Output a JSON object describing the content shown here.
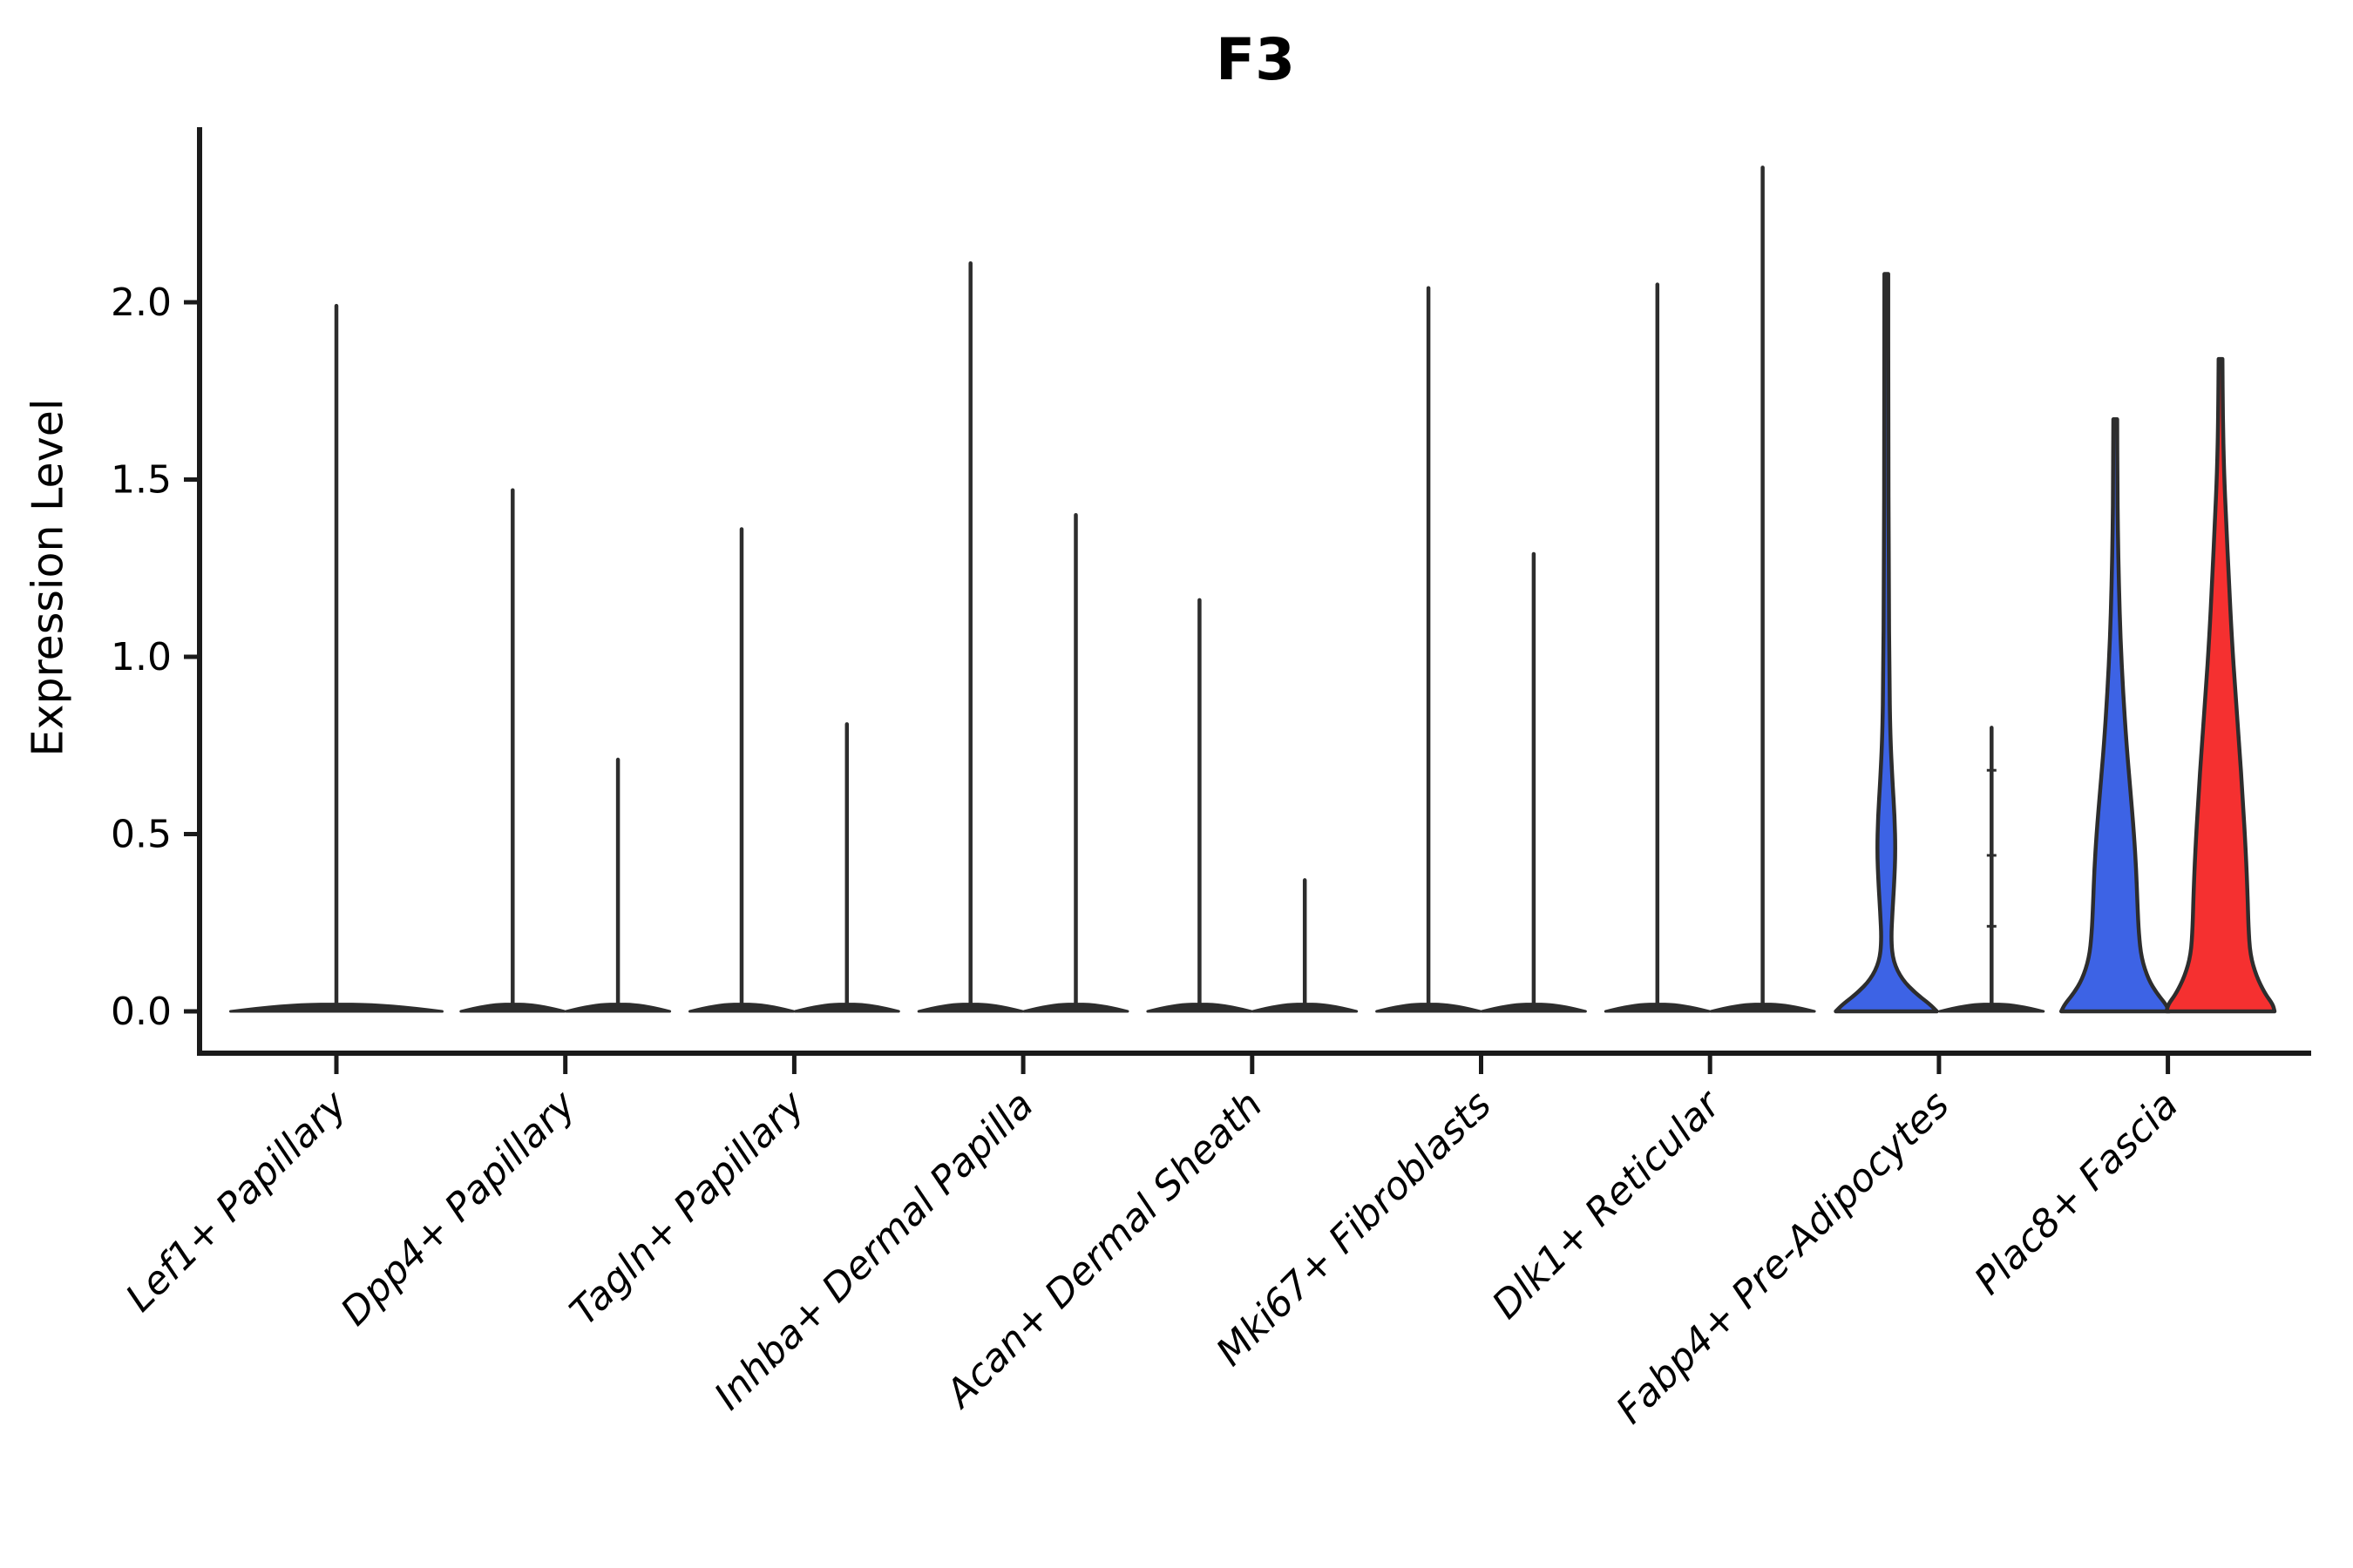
{
  "title": "F3",
  "chart_data": {
    "type": "violin",
    "title": "F3",
    "ylabel": "Expression Level",
    "xlabel": "",
    "ylim": [
      -0.12,
      2.49
    ],
    "y_ticks": [
      0.0,
      0.5,
      1.0,
      1.5,
      2.0
    ],
    "y_tick_labels": [
      "0.0",
      "0.5",
      "1.0",
      "1.5",
      "2.0"
    ],
    "grid": false,
    "legend": "none",
    "categories": [
      "Lef1+ Papillary",
      "Dpp4+ Papillary",
      "Tagln+ Papillary",
      "Inhba+ Dermal Papilla",
      "Acan+ Dermal Sheath",
      "Mki67+ Fibroblasts",
      "Dlk1+ Reticular",
      "Fabp4+ Pre-Adipocytes",
      "Plac8+ Fascia"
    ],
    "series": [
      {
        "name": "left-violin",
        "fill_color": "#3D63E5",
        "max_expression": [
          1.99,
          1.47,
          1.36,
          2.11,
          1.16,
          2.04,
          2.05,
          2.08,
          1.67
        ]
      },
      {
        "name": "right-violin",
        "fill_color": "#F53030",
        "max_expression": [
          null,
          0.71,
          0.81,
          1.4,
          0.37,
          1.29,
          2.38,
          0.8,
          1.84
        ]
      }
    ],
    "colors": {
      "violin_outline": "#2D2D2D",
      "axis": "#1A1A1A",
      "blue_fill": "#3D63E5",
      "red_fill": "#F53030",
      "background": "#FFFFFF"
    },
    "violins": [
      {
        "category": 0,
        "side": "center",
        "style": "spike",
        "max": 1.99
      },
      {
        "category": 1,
        "side": "left",
        "style": "spike",
        "max": 1.47
      },
      {
        "category": 1,
        "side": "right",
        "style": "spike",
        "max": 0.71
      },
      {
        "category": 2,
        "side": "left",
        "style": "spike",
        "max": 1.36
      },
      {
        "category": 2,
        "side": "right",
        "style": "spike",
        "max": 0.81
      },
      {
        "category": 3,
        "side": "left",
        "style": "spike",
        "max": 2.11
      },
      {
        "category": 3,
        "side": "right",
        "style": "spike",
        "max": 1.4
      },
      {
        "category": 4,
        "side": "left",
        "style": "spike",
        "max": 1.16
      },
      {
        "category": 4,
        "side": "right",
        "style": "spike",
        "max": 0.37
      },
      {
        "category": 5,
        "side": "left",
        "style": "spike",
        "max": 2.04
      },
      {
        "category": 5,
        "side": "right",
        "style": "spike",
        "max": 1.29
      },
      {
        "category": 6,
        "side": "left",
        "style": "spike",
        "max": 2.05
      },
      {
        "category": 6,
        "side": "right",
        "style": "spike",
        "max": 2.38
      },
      {
        "category": 7,
        "side": "left",
        "style": "shaped",
        "max": 2.08,
        "fill": "#3D63E5",
        "profile": [
          [
            2.08,
            2.2
          ],
          [
            1.7,
            2.2
          ],
          [
            1.2,
            2.8
          ],
          [
            0.95,
            3.5
          ],
          [
            0.78,
            4.5
          ],
          [
            0.65,
            7.0
          ],
          [
            0.55,
            9.5
          ],
          [
            0.45,
            10.5
          ],
          [
            0.36,
            9.0
          ],
          [
            0.28,
            7.0
          ],
          [
            0.2,
            5.5
          ],
          [
            0.14,
            8.0
          ],
          [
            0.09,
            18.0
          ],
          [
            0.05,
            34.0
          ],
          [
            0.02,
            50.0
          ],
          [
            0.0,
            58.0
          ]
        ],
        "base_halfwidth": 58
      },
      {
        "category": 7,
        "side": "right",
        "style": "spike",
        "max": 0.8,
        "tick_marks": [
          0.68,
          0.44,
          0.24
        ]
      },
      {
        "category": 8,
        "side": "left",
        "style": "shaped",
        "max": 1.67,
        "fill": "#3D63E5",
        "profile": [
          [
            1.67,
            2.2
          ],
          [
            1.5,
            2.4
          ],
          [
            1.35,
            3.0
          ],
          [
            1.2,
            4.2
          ],
          [
            1.05,
            6.0
          ],
          [
            0.9,
            9.0
          ],
          [
            0.75,
            13.0
          ],
          [
            0.62,
            17.5
          ],
          [
            0.5,
            21.5
          ],
          [
            0.4,
            24.0
          ],
          [
            0.3,
            25.5
          ],
          [
            0.22,
            27.0
          ],
          [
            0.15,
            30.0
          ],
          [
            0.09,
            38.0
          ],
          [
            0.05,
            48.0
          ],
          [
            0.02,
            58.0
          ],
          [
            0.0,
            62.0
          ]
        ],
        "base_halfwidth": 62
      },
      {
        "category": 8,
        "side": "right",
        "style": "shaped",
        "max": 1.84,
        "fill": "#F53030",
        "profile": [
          [
            1.84,
            2.2
          ],
          [
            1.68,
            2.6
          ],
          [
            1.52,
            4.0
          ],
          [
            1.38,
            6.5
          ],
          [
            1.22,
            9.5
          ],
          [
            1.05,
            13.0
          ],
          [
            0.9,
            17.0
          ],
          [
            0.75,
            21.5
          ],
          [
            0.6,
            25.5
          ],
          [
            0.45,
            29.0
          ],
          [
            0.33,
            31.0
          ],
          [
            0.24,
            32.0
          ],
          [
            0.16,
            34.0
          ],
          [
            0.1,
            41.0
          ],
          [
            0.05,
            51.0
          ],
          [
            0.02,
            60.0
          ],
          [
            0.0,
            62.0
          ]
        ],
        "base_halfwidth": 62
      }
    ]
  }
}
